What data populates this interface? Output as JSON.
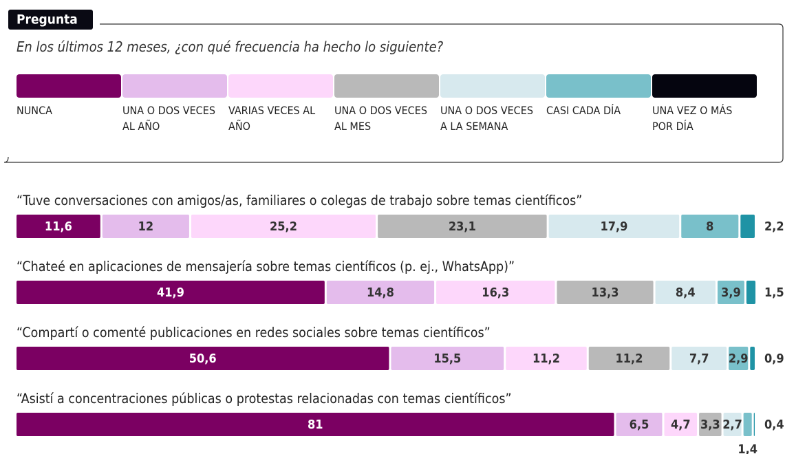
{
  "chart_data": {
    "type": "stacked-bar",
    "tab_label": "Pregunta",
    "question": "En los últimos 12 meses, ¿con qué frecuencia ha hecho lo siguiente?",
    "xlim": [
      0,
      100
    ],
    "categories": [
      "“Tuve conversaciones con amigos/as, familiares o colegas de trabajo sobre temas científicos”",
      "“Chateé en aplicaciones de mensajería sobre temas científicos (p. ej., WhatsApp)”",
      "“Compartí o comenté publicaciones en redes sociales sobre temas científicos”",
      "“Asistí a concentraciones públicas o protestas relacionadas con temas científicos”"
    ],
    "series": [
      {
        "name": "NUNCA",
        "color": "#7b0062",
        "swatch_color": "#7b0062",
        "values": [
          11.6,
          41.9,
          50.6,
          81
        ],
        "value_labels": [
          "11,6",
          "41,9",
          "50,6",
          "81"
        ]
      },
      {
        "name": "UNA O DOS VECES AL AÑO",
        "color": "#e4bcec",
        "swatch_color": "#e4bcec",
        "values": [
          12,
          14.8,
          15.5,
          6.5
        ],
        "value_labels": [
          "12",
          "14,8",
          "15,5",
          "6,5"
        ]
      },
      {
        "name": "VARIAS VECES AL AÑO",
        "color": "#fdd7fb",
        "swatch_color": "#fdd7fb",
        "values": [
          25.2,
          16.3,
          11.2,
          4.7
        ],
        "value_labels": [
          "25,2",
          "16,3",
          "11,2",
          "4,7"
        ]
      },
      {
        "name": "UNA O DOS VECES AL MES",
        "color": "#b9b9b9",
        "swatch_color": "#b9b9b9",
        "values": [
          23.1,
          13.3,
          11.2,
          3.3
        ],
        "value_labels": [
          "23,1",
          "13,3",
          "11,2",
          "3,3"
        ]
      },
      {
        "name": "UNA O DOS VECES A LA SEMANA",
        "color": "#d7e9ee",
        "swatch_color": "#d7e9ee",
        "values": [
          17.9,
          8.4,
          7.7,
          2.7
        ],
        "value_labels": [
          "17,9",
          "8,4",
          "7,7",
          "2,7"
        ]
      },
      {
        "name": "CASI CADA DÍA",
        "color": "#79c0ca",
        "swatch_color": "#79c0ca",
        "values": [
          8,
          3.9,
          2.9,
          1.4
        ],
        "value_labels": [
          "8",
          "3,9",
          "2,9",
          "1,4"
        ]
      },
      {
        "name": "UNA VEZ O MÁS POR DÍA",
        "color": "#1f93a5",
        "swatch_color": "#05050f",
        "values": [
          2.2,
          1.5,
          0.9,
          0.4
        ],
        "value_labels": [
          "2,2",
          "1,5",
          "0,9",
          "0,4"
        ]
      }
    ]
  }
}
